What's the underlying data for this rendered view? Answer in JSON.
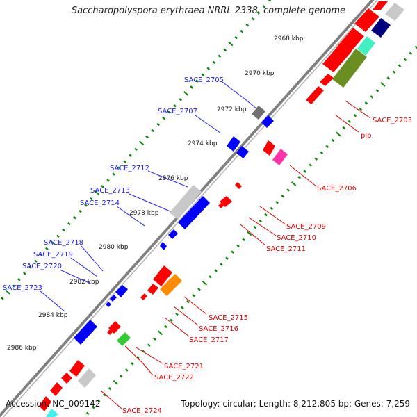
{
  "title": "Saccharopolyspora erythraea NRRL 2338, complete genome",
  "footer": {
    "accession": "Accession: NC_009142",
    "topology": "Topology: circular; Length: 8,212,805 bp; Genes: 7,259"
  },
  "kbp_ticks": [
    "2968 kbp",
    "2970 kbp",
    "2972 kbp",
    "2974 kbp",
    "2976 kbp",
    "2978 kbp",
    "2980 kbp",
    "2982 kbp",
    "2984 kbp",
    "2986 kbp"
  ],
  "gene_labels_left": [
    "SACE_2705",
    "SACE_2707",
    "SACE_2712",
    "SACE_2713",
    "SACE_2714",
    "SACE_2718",
    "SACE_2719",
    "SACE_2720",
    "SACE_2723"
  ],
  "gene_labels_right": [
    "SACE_2703",
    "pip",
    "SACE_2706",
    "SACE_2709",
    "SACE_2710",
    "SACE_2711",
    "SACE_2715",
    "SACE_2716",
    "SACE_2717",
    "SACE_2721",
    "SACE_2722",
    "SACE_2724"
  ],
  "colors": {
    "left_label": "#1a1aff",
    "right_label": "#e00000",
    "backbone": "#808080",
    "tick": "#0a8a0a",
    "gene_red": "#ff0000",
    "gene_blue": "#0000ff",
    "gene_gray": "#c8c8c8",
    "gene_darkgray": "#707070",
    "gene_navy": "#000080",
    "gene_teal": "#40f0c0",
    "gene_olive": "#6b8e23",
    "gene_magenta": "#ff33aa",
    "gene_orange": "#ff8c00",
    "gene_green": "#33cc33",
    "gene_cyan": "#40f0f0"
  }
}
